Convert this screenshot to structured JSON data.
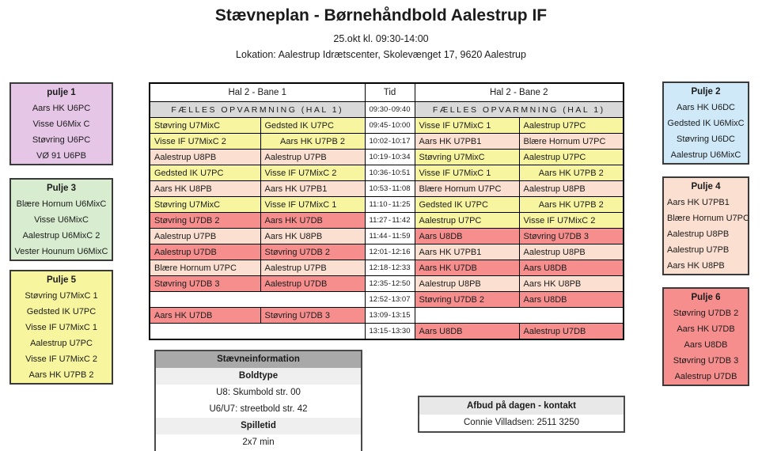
{
  "page": {
    "title": "Stævneplan - Børnehåndbold Aalestrup IF",
    "datetime": "25.okt kl. 09:30-14:00",
    "location": "Lokation: Aalestrup Idrætscenter, Skolevænget 17, 9620 Aalestrup"
  },
  "colors": {
    "yellow": "#f8f5a0",
    "peach": "#fbdfd0",
    "red": "#f78e8e",
    "warmup_gray": "#d9d9d9",
    "info_header_gray": "#a9a9a9",
    "info_subheader_gray": "#efefef",
    "contact_header_gray": "#e8e8e8"
  },
  "pools": [
    {
      "title": "pulje 1",
      "color": "#e6c6e7",
      "align": "center",
      "teams": [
        "Aars HK U6PC",
        "Visse U6Mix C",
        "Støvring U6PC",
        "VØ 91 U6PB"
      ]
    },
    {
      "title": "Pulje 2",
      "color": "#cfe9f8",
      "align": "center",
      "teams": [
        "Aars HK U6DC",
        "Gedsted IK U6MixC",
        "Støvring U6DC",
        "Aalestrup U6MixC"
      ]
    },
    {
      "title": "Pulje 3",
      "color": "#d8edd0",
      "align": "center",
      "teams": [
        "Blære Hornum U6MixC",
        "Visse U6MixC",
        "Aalestrup U6MixC 2",
        "Vester Hounum U6MixC"
      ]
    },
    {
      "title": "Pulje 4",
      "color": "#fbdfd0",
      "align": "left",
      "teams": [
        "Aars HK U7PB1",
        "Blære Hornum U7PC",
        "Aalestrup U8PB",
        "Aalestrup U7PB",
        "Aars HK U8PB"
      ]
    },
    {
      "title": "Pulje 5",
      "color": "#f8f59f",
      "align": "center",
      "teams": [
        "Støvring U7MixC 1",
        "Gedsted IK U7PC",
        "Visse IF U7MixC 1",
        "Aalestrup U7PC",
        "Visse IF U7MixC 2",
        "Aars HK U7PB 2"
      ]
    },
    {
      "title": "Pulje 6",
      "color": "#f78e8e",
      "align": "center",
      "teams": [
        "Støvring U7DB 2",
        "Aars HK U7DB",
        "Aars U8DB",
        "Støvring U7DB 3",
        "Aalestrup U7DB"
      ]
    }
  ],
  "schedule": {
    "headers": {
      "bane1": "Hal 2 - Bane 1",
      "tid": "Tid",
      "bane2": "Hal 2 - Bane 2"
    },
    "time_separator": "-",
    "warmup": {
      "label": "FÆLLES OPVARMNING (HAL 1)",
      "start": "09:30",
      "end": "09:40"
    },
    "rows": [
      {
        "start": "09:45",
        "end": "10:00",
        "bane1": {
          "home": "Støvring U7MixC",
          "away": "Gedsted IK U7PC",
          "color": "yellow"
        },
        "bane2": {
          "home": "Visse IF U7MixC 1",
          "away": "Aalestrup U7PC",
          "color": "yellow"
        }
      },
      {
        "start": "10:02",
        "end": "10:17",
        "bane1": {
          "home": "Visse IF U7MixC 2",
          "away": "Aars HK U7PB 2",
          "color": "yellow",
          "away_align": "center"
        },
        "bane2": {
          "home": "Aars HK U7PB1",
          "away": "Blære Hornum U7PC",
          "color": "peach"
        }
      },
      {
        "start": "10:19",
        "end": "10:34",
        "bane1": {
          "home": "Aalestrup U8PB",
          "away": "Aalestrup U7PB",
          "color": "peach"
        },
        "bane2": {
          "home": "Støvring U7MixC",
          "away": "Aalestrup U7PC",
          "color": "yellow"
        }
      },
      {
        "start": "10:36",
        "end": "10:51",
        "bane1": {
          "home": "Gedsted IK U7PC",
          "away": "Visse IF U7MixC 2",
          "color": "yellow"
        },
        "bane2": {
          "home": "Visse IF U7MixC 1",
          "away": "Aars HK U7PB 2",
          "color": "yellow",
          "away_align": "center"
        }
      },
      {
        "start": "10:53",
        "end": "11:08",
        "bane1": {
          "home": "Aars HK U8PB",
          "away": "Aars HK U7PB1",
          "color": "peach"
        },
        "bane2": {
          "home": "Blære Hornum U7PC",
          "away": "Aalestrup U8PB",
          "color": "peach"
        }
      },
      {
        "start": "11:10",
        "end": "11:25",
        "bane1": {
          "home": "Støvring U7MixC",
          "away": "Visse IF U7MixC 1",
          "color": "yellow"
        },
        "bane2": {
          "home": "Gedsted IK U7PC",
          "away": "Aars HK U7PB 2",
          "color": "yellow",
          "away_align": "center"
        }
      },
      {
        "start": "11:27",
        "end": "11:42",
        "bane1": {
          "home": "Støvring U7DB 2",
          "away": "Aars HK U7DB",
          "color": "red"
        },
        "bane2": {
          "home": "Aalestrup U7PC",
          "away": "Visse IF U7MixC 2",
          "color": "yellow"
        }
      },
      {
        "start": "11:44",
        "end": "11:59",
        "bane1": {
          "home": "Aalestrup U7PB",
          "away": "Aars HK U8PB",
          "color": "peach"
        },
        "bane2": {
          "home": "Aars U8DB",
          "away": "Støvring U7DB 3",
          "color": "red"
        }
      },
      {
        "start": "12:01",
        "end": "12:16",
        "bane1": {
          "home": "Aalestrup U7DB",
          "away": "Støvring U7DB 2",
          "color": "red"
        },
        "bane2": {
          "home": "Aars HK U7PB1",
          "away": "Aalestrup U8PB",
          "color": "peach"
        }
      },
      {
        "start": "12:18",
        "end": "12:33",
        "bane1": {
          "home": "Blære Hornum U7PC",
          "away": "Aalestrup U7PB",
          "color": "peach"
        },
        "bane2": {
          "home": "Aars HK U7DB",
          "away": "Aars U8DB",
          "color": "red"
        }
      },
      {
        "start": "12:35",
        "end": "12:50",
        "bane1": {
          "home": "Støvring U7DB 3",
          "away": "Aalestrup U7DB",
          "color": "red"
        },
        "bane2": {
          "home": "Aalestrup U8PB",
          "away": "Aars HK U8PB",
          "color": "peach"
        }
      },
      {
        "start": "12:52",
        "end": "13:07",
        "bane1": null,
        "bane2": {
          "home": "Støvring U7DB 2",
          "away": "Aars U8DB",
          "color": "red"
        }
      },
      {
        "start": "13:09",
        "end": "13:15",
        "bane1": {
          "home": "Aars HK U7DB",
          "away": "Støvring U7DB 3",
          "color": "red"
        },
        "bane2": null
      },
      {
        "start": "13:15",
        "end": "13:30",
        "bane1": null,
        "bane2": {
          "home": "Aars U8DB",
          "away": "Aalestrup U7DB",
          "color": "red"
        }
      }
    ]
  },
  "info_box": {
    "title": "Stævneinformation",
    "sections": [
      {
        "header": "Boldtype",
        "lines": [
          "U8: Skumbold str. 00",
          "U6/U7: streetbold str. 42"
        ]
      },
      {
        "header": "Spilletid",
        "lines": [
          "2x7 min"
        ]
      }
    ]
  },
  "contact_box": {
    "title": "Afbud på dagen - kontakt",
    "line": "Connie Villadsen: 2511 3250"
  }
}
